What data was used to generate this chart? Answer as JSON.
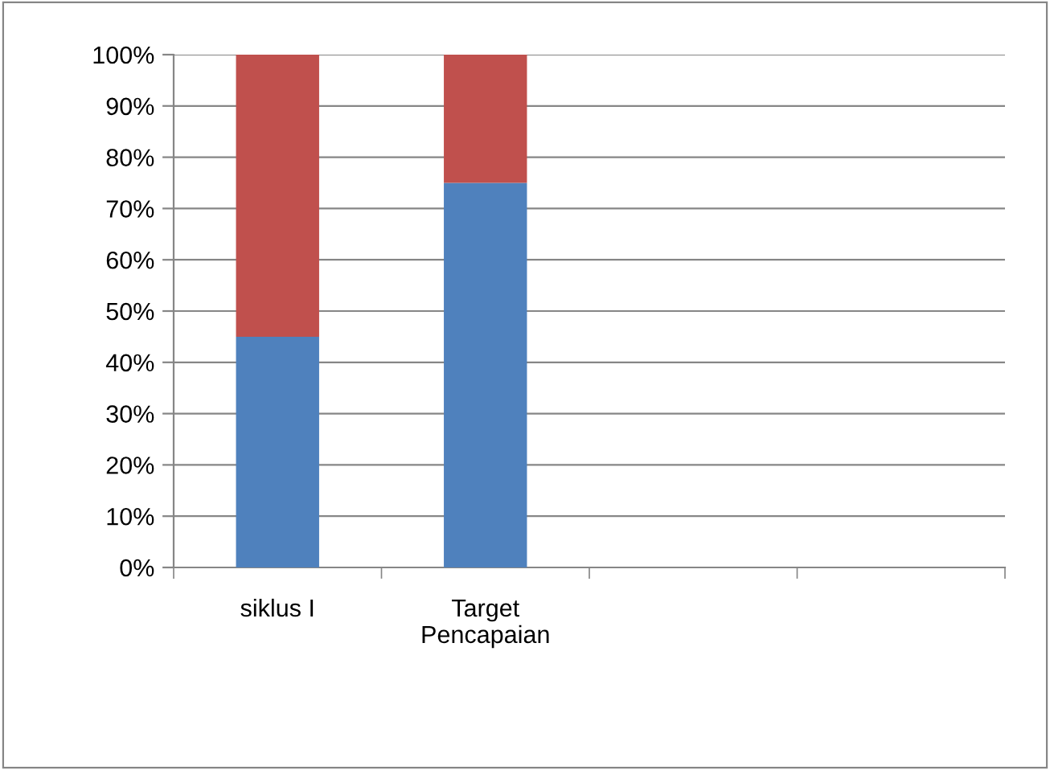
{
  "chart_data": {
    "type": "bar",
    "stacked": true,
    "categories": [
      "siklus I",
      "Target\nPencapaian",
      null,
      null
    ],
    "series": [
      {
        "color": "#4f81bd",
        "values": [
          45,
          75,
          null,
          null
        ]
      },
      {
        "color": "#c0504d",
        "values": [
          55,
          25,
          null,
          null
        ]
      }
    ],
    "ylim": [
      0,
      100
    ],
    "yticks": [
      {
        "value": 0,
        "label": "0%"
      },
      {
        "value": 10,
        "label": "10%"
      },
      {
        "value": 20,
        "label": "20%"
      },
      {
        "value": 30,
        "label": "30%"
      },
      {
        "value": 40,
        "label": "40%"
      },
      {
        "value": 50,
        "label": "50%"
      },
      {
        "value": 60,
        "label": "60%"
      },
      {
        "value": 70,
        "label": "70%"
      },
      {
        "value": 80,
        "label": "80%"
      },
      {
        "value": 90,
        "label": "90%"
      },
      {
        "value": 100,
        "label": "100%"
      }
    ],
    "grid": "y",
    "legend": false
  }
}
